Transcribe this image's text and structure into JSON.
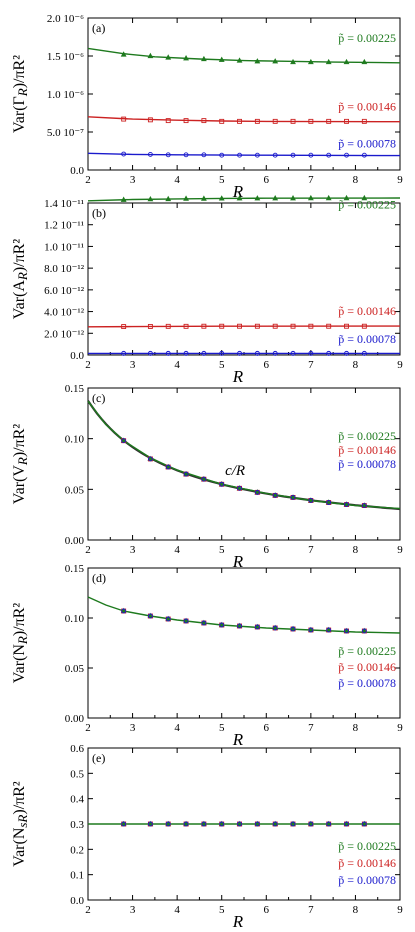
{
  "colors": {
    "green": "#1e7a1e",
    "red": "#cc2222",
    "blue": "#1a1acc",
    "axis": "#000000",
    "ref": "#333333"
  },
  "legend_order": [
    "green",
    "red",
    "blue"
  ],
  "chart_data": [
    {
      "panel_label": "(a)",
      "type": "line",
      "title": "",
      "xlabel": "R",
      "ylabel": "Var(Γ_R)/πR²",
      "xlim": [
        2,
        9
      ],
      "ylim": [
        0,
        2e-06
      ],
      "xticks": [
        2,
        3,
        4,
        5,
        6,
        7,
        8,
        9
      ],
      "yticks": [
        {
          "value": 0,
          "label": "0.0"
        },
        {
          "value": 5e-07,
          "label": "5.0 10⁻⁷"
        },
        {
          "value": 1e-06,
          "label": "1.0 10⁻⁶"
        },
        {
          "value": 1.5e-06,
          "label": "1.5 10⁻⁶"
        },
        {
          "value": 2e-06,
          "label": "2.0 10⁻⁶"
        }
      ],
      "grid": false,
      "legend_placement": "inline-right",
      "series": [
        {
          "name": "p̃ = 0.00225",
          "color": "green",
          "marker": "triangle",
          "x": [
            2.8,
            3.4,
            3.8,
            4.2,
            4.6,
            5.0,
            5.4,
            5.8,
            6.2,
            6.6,
            7.0,
            7.4,
            7.8,
            8.2
          ],
          "y": [
            1.52e-06,
            1.5e-06,
            1.48e-06,
            1.47e-06,
            1.46e-06,
            1.45e-06,
            1.44e-06,
            1.43e-06,
            1.43e-06,
            1.42e-06,
            1.42e-06,
            1.42e-06,
            1.42e-06,
            1.42e-06
          ],
          "curve": [
            [
              2,
              1.6e-06
            ],
            [
              2.8,
              1.53e-06
            ],
            [
              3.5,
              1.49e-06
            ],
            [
              4.5,
              1.46e-06
            ],
            [
              5.5,
              1.44e-06
            ],
            [
              6.5,
              1.43e-06
            ],
            [
              7.5,
              1.42e-06
            ],
            [
              9,
              1.41e-06
            ]
          ]
        },
        {
          "name": "p̃ = 0.00146",
          "color": "red",
          "marker": "square",
          "x": [
            2.8,
            3.4,
            3.8,
            4.2,
            4.6,
            5.0,
            5.4,
            5.8,
            6.2,
            6.6,
            7.0,
            7.4,
            7.8,
            8.2
          ],
          "y": [
            6.7e-07,
            6.6e-07,
            6.5e-07,
            6.5e-07,
            6.5e-07,
            6.4e-07,
            6.4e-07,
            6.4e-07,
            6.4e-07,
            6.4e-07,
            6.4e-07,
            6.4e-07,
            6.4e-07,
            6.4e-07
          ],
          "curve": [
            [
              2,
              7e-07
            ],
            [
              3,
              6.7e-07
            ],
            [
              4,
              6.55e-07
            ],
            [
              5,
              6.45e-07
            ],
            [
              6,
              6.4e-07
            ],
            [
              9,
              6.35e-07
            ]
          ]
        },
        {
          "name": "p̃ = 0.00078",
          "color": "blue",
          "marker": "circle",
          "x": [
            2.8,
            3.4,
            3.8,
            4.2,
            4.6,
            5.0,
            5.4,
            5.8,
            6.2,
            6.6,
            7.0,
            7.4,
            7.8,
            8.2
          ],
          "y": [
            2.1e-07,
            2.05e-07,
            2e-07,
            2e-07,
            2e-07,
            1.95e-07,
            1.95e-07,
            1.95e-07,
            1.95e-07,
            1.95e-07,
            1.95e-07,
            1.95e-07,
            1.95e-07,
            1.95e-07
          ],
          "curve": [
            [
              2,
              2.2e-07
            ],
            [
              3,
              2.05e-07
            ],
            [
              4,
              2e-07
            ],
            [
              6,
              1.95e-07
            ],
            [
              9,
              1.9e-07
            ]
          ]
        }
      ],
      "annotations": []
    },
    {
      "panel_label": "(b)",
      "type": "line",
      "title": "",
      "xlabel": "R",
      "ylabel": "Var(A_R)/πR²",
      "xlim": [
        2,
        9
      ],
      "ylim": [
        0,
        1.4e-11
      ],
      "xticks": [
        2,
        3,
        4,
        5,
        6,
        7,
        8,
        9
      ],
      "yticks": [
        {
          "value": 0,
          "label": "0.0"
        },
        {
          "value": 2e-12,
          "label": "2.0 10⁻¹²"
        },
        {
          "value": 4e-12,
          "label": "4.0 10⁻¹²"
        },
        {
          "value": 6e-12,
          "label": "6.0 10⁻¹²"
        },
        {
          "value": 8e-12,
          "label": "8.0 10⁻¹²"
        },
        {
          "value": 1e-11,
          "label": "1.0 10⁻¹¹"
        },
        {
          "value": 1.2e-11,
          "label": "1.2 10⁻¹¹"
        },
        {
          "value": 1.4e-11,
          "label": "1.4 10⁻¹¹"
        }
      ],
      "grid": false,
      "legend_placement": "inline-right",
      "series": [
        {
          "name": "p̃ = 0.00225",
          "color": "green",
          "marker": "triangle",
          "x": [
            2.8,
            3.4,
            3.8,
            4.2,
            4.6,
            5.0,
            5.4,
            5.8,
            6.2,
            6.6,
            7.0,
            7.4,
            7.8,
            8.2
          ],
          "y": [
            1.43e-11,
            1.435e-11,
            1.437e-11,
            1.44e-11,
            1.44e-11,
            1.442e-11,
            1.443e-11,
            1.443e-11,
            1.444e-11,
            1.444e-11,
            1.445e-11,
            1.445e-11,
            1.445e-11,
            1.445e-11
          ],
          "curve": [
            [
              2,
              1.42e-11
            ],
            [
              3,
              1.432e-11
            ],
            [
              4,
              1.438e-11
            ],
            [
              5,
              1.442e-11
            ],
            [
              6,
              1.444e-11
            ],
            [
              9,
              1.446e-11
            ]
          ]
        },
        {
          "name": "p̃ = 0.00146",
          "color": "red",
          "marker": "square",
          "x": [
            2.8,
            3.4,
            3.8,
            4.2,
            4.6,
            5.0,
            5.4,
            5.8,
            6.2,
            6.6,
            7.0,
            7.4,
            7.8,
            8.2
          ],
          "y": [
            2.62e-12,
            2.63e-12,
            2.64e-12,
            2.64e-12,
            2.65e-12,
            2.65e-12,
            2.65e-12,
            2.65e-12,
            2.65e-12,
            2.65e-12,
            2.65e-12,
            2.65e-12,
            2.65e-12,
            2.65e-12
          ],
          "curve": [
            [
              2,
              2.6e-12
            ],
            [
              3,
              2.62e-12
            ],
            [
              5,
              2.65e-12
            ],
            [
              9,
              2.66e-12
            ]
          ]
        },
        {
          "name": "p̃ = 0.00078",
          "color": "blue",
          "marker": "circle",
          "x": [
            2.8,
            3.4,
            3.8,
            4.2,
            4.6,
            5.0,
            5.4,
            5.8,
            6.2,
            6.6,
            7.0,
            7.4,
            7.8,
            8.2
          ],
          "y": [
            1.5e-13,
            1.5e-13,
            1.5e-13,
            1.5e-13,
            1.5e-13,
            1.5e-13,
            1.5e-13,
            1.5e-13,
            1.5e-13,
            1.5e-13,
            1.5e-13,
            1.5e-13,
            1.5e-13,
            1.5e-13
          ],
          "curve": [
            [
              2,
              1.5e-13
            ],
            [
              9,
              1.5e-13
            ]
          ]
        }
      ],
      "annotations": []
    },
    {
      "panel_label": "(c)",
      "type": "line",
      "title": "",
      "xlabel": "R",
      "ylabel": "Var(V_R)/πR²",
      "xlim": [
        2,
        9
      ],
      "ylim": [
        0,
        0.15
      ],
      "xticks": [
        2,
        3,
        4,
        5,
        6,
        7,
        8,
        9
      ],
      "yticks": [
        {
          "value": 0,
          "label": "0.00"
        },
        {
          "value": 0.05,
          "label": "0.05"
        },
        {
          "value": 0.1,
          "label": "0.10"
        },
        {
          "value": 0.15,
          "label": "0.15"
        }
      ],
      "grid": false,
      "legend_placement": "right",
      "series": [
        {
          "name": "p̃ = 0.00225",
          "color": "green",
          "marker": "triangle",
          "x": [
            2.8,
            3.4,
            3.8,
            4.2,
            4.6,
            5.0,
            5.4,
            5.8,
            6.2,
            6.6,
            7.0,
            7.4,
            7.8,
            8.2
          ],
          "y": [
            0.098,
            0.08,
            0.072,
            0.065,
            0.06,
            0.055,
            0.051,
            0.047,
            0.044,
            0.042,
            0.039,
            0.037,
            0.035,
            0.034
          ],
          "curve": [
            [
              2,
              0.137
            ],
            [
              2.4,
              0.114
            ],
            [
              2.8,
              0.098
            ],
            [
              3.4,
              0.081
            ],
            [
              4,
              0.069
            ],
            [
              5,
              0.055
            ],
            [
              6,
              0.046
            ],
            [
              7,
              0.039
            ],
            [
              8,
              0.034
            ],
            [
              9,
              0.031
            ]
          ]
        },
        {
          "name": "p̃ = 0.00146",
          "color": "red",
          "marker": "square",
          "x": [
            2.8,
            3.4,
            3.8,
            4.2,
            4.6,
            5.0,
            5.4,
            5.8,
            6.2,
            6.6,
            7.0,
            7.4,
            7.8,
            8.2
          ],
          "y": [
            0.098,
            0.08,
            0.072,
            0.065,
            0.06,
            0.055,
            0.051,
            0.047,
            0.044,
            0.042,
            0.039,
            0.037,
            0.035,
            0.034
          ],
          "curve": []
        },
        {
          "name": "p̃ = 0.00078",
          "color": "blue",
          "marker": "circle",
          "x": [
            2.8,
            3.4,
            3.8,
            4.2,
            4.6,
            5.0,
            5.4,
            5.8,
            6.2,
            6.6,
            7.0,
            7.4,
            7.8,
            8.2
          ],
          "y": [
            0.098,
            0.08,
            0.072,
            0.065,
            0.06,
            0.055,
            0.051,
            0.047,
            0.044,
            0.042,
            0.039,
            0.037,
            0.035,
            0.034
          ],
          "curve": []
        }
      ],
      "reference_curve": {
        "label": "c/R",
        "form": "c/R",
        "c": 0.275
      },
      "annotations": [
        "c/R"
      ]
    },
    {
      "panel_label": "(d)",
      "type": "line",
      "title": "",
      "xlabel": "R",
      "ylabel": "Var(N_R)/πR²",
      "xlim": [
        2,
        9
      ],
      "ylim": [
        0,
        0.15
      ],
      "xticks": [
        2,
        3,
        4,
        5,
        6,
        7,
        8,
        9
      ],
      "yticks": [
        {
          "value": 0,
          "label": "0.00"
        },
        {
          "value": 0.05,
          "label": "0.05"
        },
        {
          "value": 0.1,
          "label": "0.10"
        },
        {
          "value": 0.15,
          "label": "0.15"
        }
      ],
      "grid": false,
      "legend_placement": "bottom-right",
      "series": [
        {
          "name": "p̃ = 0.00225",
          "color": "green",
          "marker": "triangle",
          "x": [
            2.8,
            3.4,
            3.8,
            4.2,
            4.6,
            5.0,
            5.4,
            5.8,
            6.2,
            6.6,
            7.0,
            7.4,
            7.8,
            8.2
          ],
          "y": [
            0.107,
            0.102,
            0.099,
            0.097,
            0.095,
            0.093,
            0.092,
            0.091,
            0.09,
            0.089,
            0.088,
            0.088,
            0.087,
            0.087
          ],
          "curve": [
            [
              2,
              0.121
            ],
            [
              2.4,
              0.113
            ],
            [
              2.8,
              0.107
            ],
            [
              3.4,
              0.102
            ],
            [
              4,
              0.098
            ],
            [
              5,
              0.093
            ],
            [
              6,
              0.09
            ],
            [
              7,
              0.088
            ],
            [
              8,
              0.086
            ],
            [
              9,
              0.085
            ]
          ]
        },
        {
          "name": "p̃ = 0.00146",
          "color": "red",
          "marker": "square",
          "x": [
            2.8,
            3.4,
            3.8,
            4.2,
            4.6,
            5.0,
            5.4,
            5.8,
            6.2,
            6.6,
            7.0,
            7.4,
            7.8,
            8.2
          ],
          "y": [
            0.107,
            0.102,
            0.099,
            0.097,
            0.095,
            0.093,
            0.092,
            0.091,
            0.09,
            0.089,
            0.088,
            0.088,
            0.087,
            0.087
          ],
          "curve": []
        },
        {
          "name": "p̃ = 0.00078",
          "color": "blue",
          "marker": "circle",
          "x": [
            2.8,
            3.4,
            3.8,
            4.2,
            4.6,
            5.0,
            5.4,
            5.8,
            6.2,
            6.6,
            7.0,
            7.4,
            7.8,
            8.2
          ],
          "y": [
            0.107,
            0.102,
            0.099,
            0.097,
            0.095,
            0.093,
            0.092,
            0.091,
            0.09,
            0.089,
            0.088,
            0.088,
            0.087,
            0.087
          ],
          "curve": []
        }
      ],
      "annotations": []
    },
    {
      "panel_label": "(e)",
      "type": "line",
      "title": "",
      "xlabel": "R",
      "ylabel": "Var(N_sR)/πR²",
      "xlim": [
        2,
        9
      ],
      "ylim": [
        0,
        0.6
      ],
      "xticks": [
        2,
        3,
        4,
        5,
        6,
        7,
        8,
        9
      ],
      "yticks": [
        {
          "value": 0,
          "label": "0.0"
        },
        {
          "value": 0.1,
          "label": "0.1"
        },
        {
          "value": 0.2,
          "label": "0.2"
        },
        {
          "value": 0.3,
          "label": "0.3"
        },
        {
          "value": 0.4,
          "label": "0.4"
        },
        {
          "value": 0.5,
          "label": "0.5"
        },
        {
          "value": 0.6,
          "label": "0.6"
        }
      ],
      "grid": false,
      "legend_placement": "bottom-right",
      "series": [
        {
          "name": "p̃ = 0.00225",
          "color": "green",
          "marker": "triangle",
          "x": [
            2.8,
            3.4,
            3.8,
            4.2,
            4.6,
            5.0,
            5.4,
            5.8,
            6.2,
            6.6,
            7.0,
            7.4,
            7.8,
            8.2
          ],
          "y": [
            0.3,
            0.3,
            0.3,
            0.3,
            0.3,
            0.3,
            0.3,
            0.3,
            0.3,
            0.3,
            0.3,
            0.3,
            0.3,
            0.3
          ],
          "curve": [
            [
              2,
              0.3
            ],
            [
              9,
              0.3
            ]
          ]
        },
        {
          "name": "p̃ = 0.00146",
          "color": "red",
          "marker": "square",
          "x": [
            2.8,
            3.4,
            3.8,
            4.2,
            4.6,
            5.0,
            5.4,
            5.8,
            6.2,
            6.6,
            7.0,
            7.4,
            7.8,
            8.2
          ],
          "y": [
            0.3,
            0.3,
            0.3,
            0.3,
            0.3,
            0.3,
            0.3,
            0.3,
            0.3,
            0.3,
            0.3,
            0.3,
            0.3,
            0.3
          ],
          "curve": []
        },
        {
          "name": "p̃ = 0.00078",
          "color": "blue",
          "marker": "circle",
          "x": [
            2.8,
            3.4,
            3.8,
            4.2,
            4.6,
            5.0,
            5.4,
            5.8,
            6.2,
            6.6,
            7.0,
            7.4,
            7.8,
            8.2
          ],
          "y": [
            0.3,
            0.3,
            0.3,
            0.3,
            0.3,
            0.3,
            0.3,
            0.3,
            0.3,
            0.3,
            0.3,
            0.3,
            0.3,
            0.3
          ],
          "curve": []
        }
      ],
      "annotations": []
    }
  ]
}
